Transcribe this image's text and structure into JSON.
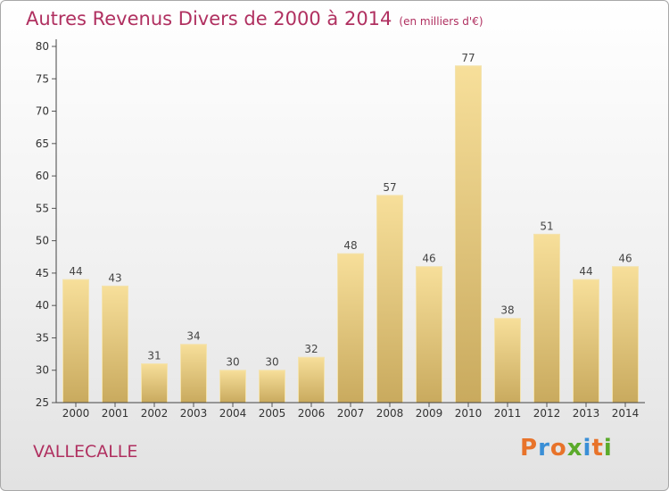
{
  "header": {
    "title": "Autres Revenus Divers de 2000 à 2014",
    "subtitle": "(en milliers d'€)"
  },
  "footer": {
    "location": "VALLECALLE",
    "logo": "Proxiti"
  },
  "colors": {
    "title": "#b03060",
    "bar_top": "#f7df9a",
    "bar_bottom": "#c9aa5e",
    "logo": [
      "#e8732a",
      "#3a8fd6",
      "#e8732a",
      "#5aaa2a",
      "#3a8fd6",
      "#e8732a",
      "#5aaa2a"
    ]
  },
  "chart_data": {
    "type": "bar",
    "categories": [
      "2000",
      "2001",
      "2002",
      "2003",
      "2004",
      "2005",
      "2006",
      "2007",
      "2008",
      "2009",
      "2010",
      "2011",
      "2012",
      "2013",
      "2014"
    ],
    "values": [
      44,
      43,
      31,
      34,
      30,
      30,
      32,
      48,
      57,
      46,
      77,
      38,
      51,
      44,
      46
    ],
    "ylim": [
      25,
      80
    ],
    "yticks": [
      25,
      30,
      35,
      40,
      45,
      50,
      55,
      60,
      65,
      70,
      75,
      80
    ],
    "grid": false
  }
}
